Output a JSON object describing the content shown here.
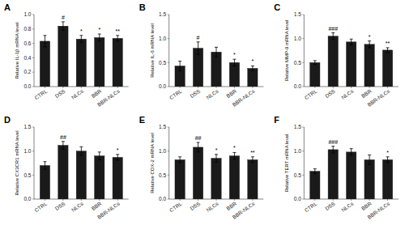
{
  "chart_data": [
    {
      "type": "bar",
      "title": "A",
      "ylabel": "Relative IL-1β mRNA level",
      "categories": [
        "CTRL",
        "DSS",
        "NLCs",
        "BBR",
        "BBR-NLCs"
      ],
      "values": [
        0.63,
        0.84,
        0.66,
        0.68,
        0.67
      ],
      "errors": [
        0.08,
        0.06,
        0.05,
        0.05,
        0.04
      ],
      "significance": [
        null,
        "#",
        "*",
        "*",
        "**"
      ],
      "color": "#1a1a1a",
      "ylim": [
        0,
        1.0
      ],
      "yticks": [
        {
          "value": 0.0,
          "label": "0.0"
        },
        0.2,
        0.4,
        0.6,
        0.8,
        {
          "value": 1.0,
          "label": "1.0"
        }
      ],
      "grid": false
    },
    {
      "type": "bar",
      "title": "B",
      "ylabel": "Relative IL-6 mRNA level",
      "categories": [
        "CTRL",
        "DSS",
        "NLCs",
        "BBR",
        "BBR-NLCs"
      ],
      "values": [
        0.43,
        0.8,
        0.72,
        0.5,
        0.38
      ],
      "errors": [
        0.1,
        0.13,
        0.1,
        0.07,
        0.05
      ],
      "significance": [
        null,
        "#",
        null,
        "*",
        "*"
      ],
      "color": "#1a1a1a",
      "ylim": [
        0,
        1.5
      ],
      "yticks": [
        {
          "value": 0.0,
          "label": "0.0"
        },
        0.5,
        {
          "value": 1.0,
          "label": "1.0"
        },
        1.5
      ],
      "grid": false
    },
    {
      "type": "bar",
      "title": "C",
      "ylabel": "Relative MMP-9 mRNA level",
      "categories": [
        "CTRL",
        "DSS",
        "NLCs",
        "BBR",
        "BBR-NLCs"
      ],
      "values": [
        0.5,
        1.05,
        0.93,
        0.88,
        0.76
      ],
      "errors": [
        0.04,
        0.07,
        0.06,
        0.07,
        0.05
      ],
      "significance": [
        null,
        "###",
        null,
        "*",
        "**"
      ],
      "color": "#1a1a1a",
      "ylim": [
        0,
        1.5
      ],
      "yticks": [
        {
          "value": 0.0,
          "label": "0.0"
        },
        0.5,
        {
          "value": 1.0,
          "label": "1.0"
        },
        1.5
      ],
      "grid": false
    },
    {
      "type": "bar",
      "title": "D",
      "ylabel": "Relative CX3CR1 mRNA level",
      "categories": [
        "CTRL",
        "DSS",
        "NLCs",
        "BBR",
        "BBR-NLCs"
      ],
      "values": [
        0.7,
        1.12,
        1.0,
        0.9,
        0.87
      ],
      "errors": [
        0.08,
        0.08,
        0.09,
        0.08,
        0.06
      ],
      "significance": [
        null,
        "##",
        null,
        null,
        "*"
      ],
      "color": "#1a1a1a",
      "ylim": [
        0,
        1.5
      ],
      "yticks": [
        {
          "value": 0.0,
          "label": "0.0"
        },
        0.5,
        {
          "value": 1.0,
          "label": "1.0"
        },
        1.5
      ],
      "grid": false
    },
    {
      "type": "bar",
      "title": "E",
      "ylabel": "Relative COX-2 mRNA level",
      "categories": [
        "CTRL",
        "DSS",
        "NLCs",
        "BBR",
        "BBR-NLCs"
      ],
      "values": [
        0.82,
        1.08,
        0.85,
        0.9,
        0.82
      ],
      "errors": [
        0.06,
        0.1,
        0.08,
        0.07,
        0.06
      ],
      "significance": [
        null,
        "##",
        "*",
        "*",
        "**"
      ],
      "color": "#1a1a1a",
      "ylim": [
        0,
        1.5
      ],
      "yticks": [
        {
          "value": 0.0,
          "label": "0.0"
        },
        0.5,
        {
          "value": 1.0,
          "label": "1.0"
        },
        1.5
      ],
      "grid": false
    },
    {
      "type": "bar",
      "title": "F",
      "ylabel": "Relative TERT mRNA level",
      "categories": [
        "CTRL",
        "DSS",
        "NLCs",
        "BBR",
        "BBR-NLCs"
      ],
      "values": [
        0.58,
        1.03,
        0.98,
        0.82,
        0.82
      ],
      "errors": [
        0.05,
        0.07,
        0.07,
        0.1,
        0.06
      ],
      "significance": [
        null,
        "###",
        null,
        null,
        "*"
      ],
      "color": "#1a1a1a",
      "ylim": [
        0,
        1.5
      ],
      "yticks": [
        {
          "value": 0.0,
          "label": "0.0"
        },
        0.5,
        {
          "value": 1.0,
          "label": "1.0"
        },
        1.5
      ],
      "grid": false
    }
  ]
}
